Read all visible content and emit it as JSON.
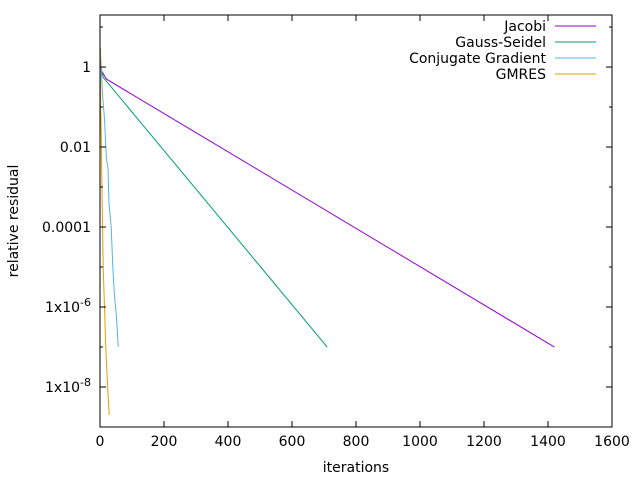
{
  "chart_data": {
    "type": "line",
    "xlabel": "iterations",
    "ylabel": "relative residual",
    "xscale": "linear",
    "yscale": "log",
    "xlim": [
      0,
      1600
    ],
    "ylim": [
      1e-09,
      20
    ],
    "x_ticks": [
      {
        "value": 0,
        "label": "0"
      },
      {
        "value": 200,
        "label": "200"
      },
      {
        "value": 400,
        "label": "400"
      },
      {
        "value": 600,
        "label": "600"
      },
      {
        "value": 800,
        "label": "800"
      },
      {
        "value": 1000,
        "label": "1000"
      },
      {
        "value": 1200,
        "label": "1200"
      },
      {
        "value": 1400,
        "label": "1400"
      },
      {
        "value": 1600,
        "label": "1600"
      }
    ],
    "y_ticks": [
      {
        "value": 1,
        "label": "1",
        "sup": ""
      },
      {
        "value": 0.01,
        "label": "0.01",
        "sup": ""
      },
      {
        "value": 0.0001,
        "label": "0.0001",
        "sup": ""
      },
      {
        "value": 1e-06,
        "label": "1x10",
        "sup": "-6"
      },
      {
        "value": 1e-08,
        "label": "1x10",
        "sup": "-8"
      }
    ],
    "grid": false,
    "legend_position": "top-right",
    "series": [
      {
        "name": "Jacobi",
        "color": "#9400d3",
        "x": [
          0,
          1,
          2,
          5,
          20,
          1420
        ],
        "y": [
          1,
          3,
          1.3,
          0.8,
          0.5,
          1e-07
        ]
      },
      {
        "name": "Gauss-Seidel",
        "color": "#009e73",
        "x": [
          0,
          1,
          3,
          10,
          710
        ],
        "y": [
          1,
          2,
          0.9,
          0.55,
          1e-07
        ]
      },
      {
        "name": "Conjugate Gradient",
        "color": "#56b4e9",
        "x": [
          0,
          1,
          3,
          8,
          14,
          20,
          25,
          28,
          35,
          40,
          45,
          52,
          57
        ],
        "y": [
          1,
          3,
          1.2,
          0.2,
          0.05,
          0.005,
          0.003,
          0.0004,
          0.0001,
          1e-05,
          2e-06,
          5e-07,
          1e-07
        ]
      },
      {
        "name": "GMRES",
        "color": "#e69f00",
        "x": [
          0,
          1,
          2,
          4,
          6,
          8,
          10,
          14,
          18,
          22,
          26,
          29
        ],
        "y": [
          1,
          3,
          0.1,
          0.02,
          0.001,
          0.0001,
          1e-05,
          1e-06,
          1e-07,
          2e-08,
          5e-09,
          2e-09
        ]
      }
    ]
  }
}
